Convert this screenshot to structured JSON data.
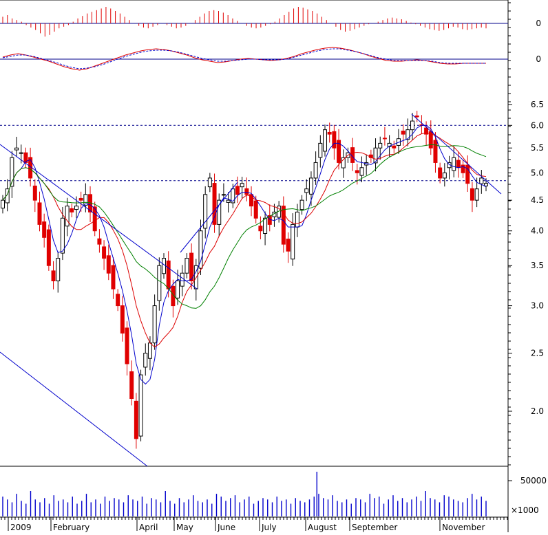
{
  "chart_data": {
    "type": "candlestick",
    "price_axis": {
      "scale": "log",
      "ticks": [
        "6.5",
        "6.0",
        "5.5",
        "5.0",
        "4.5",
        "4.0",
        "3.5",
        "3.0",
        "2.5",
        "2.0"
      ],
      "horizontal_levels": [
        6.0,
        4.85
      ]
    },
    "x_axis": {
      "labels": [
        "2009",
        "February",
        "April",
        "May",
        "June",
        "July",
        "August",
        "September",
        "November"
      ]
    },
    "moving_averages": [
      "blue",
      "red",
      "green"
    ],
    "candles_close_approx": [
      4.5,
      4.7,
      5.3,
      5.5,
      5.4,
      5.2,
      4.9,
      4.5,
      4.1,
      3.9,
      3.5,
      3.3,
      3.6,
      4.2,
      4.4,
      4.3,
      4.4,
      4.5,
      4.6,
      4.3,
      4.0,
      3.8,
      3.6,
      3.4,
      3.2,
      3.0,
      2.7,
      2.4,
      2.1,
      1.8,
      2.3,
      2.5,
      2.6,
      3.0,
      3.5,
      3.6,
      3.2,
      3.0,
      3.3,
      3.4,
      3.6,
      3.3,
      3.5,
      4.0,
      4.6,
      4.9,
      4.1,
      4.5,
      4.6,
      4.5,
      4.7,
      4.6,
      4.8,
      4.6,
      4.4,
      4.2,
      4.0,
      4.2,
      4.1,
      4.3,
      4.4,
      3.8,
      3.7,
      4.1,
      4.3,
      4.5,
      4.7,
      4.9,
      5.2,
      5.6,
      5.9,
      5.8,
      5.5,
      5.2,
      5.3,
      5.4,
      5.2,
      5.0,
      5.1,
      5.2,
      5.3,
      5.5,
      5.6,
      5.7,
      5.6,
      5.5,
      5.7,
      5.8,
      5.9,
      6.1,
      6.2,
      6.0,
      5.8,
      5.5,
      5.2,
      4.9,
      5.0,
      5.2,
      5.3,
      5.1,
      5.0,
      4.8,
      4.5,
      4.7,
      4.9,
      4.8
    ],
    "volume_axis": {
      "label": "50000",
      "unit": "×1000"
    },
    "volume_ref": 50000,
    "volume_bars_approx": [
      14,
      12,
      10,
      16,
      11,
      9,
      18,
      12,
      10,
      13,
      9,
      15,
      11,
      12,
      10,
      14,
      9,
      11,
      16,
      10,
      12,
      9,
      14,
      11,
      13,
      12,
      10,
      15,
      12,
      11,
      14,
      9,
      13,
      12,
      10,
      18,
      11,
      9,
      13,
      10,
      12,
      15,
      11,
      10,
      12,
      9,
      16,
      14,
      11,
      13,
      15,
      10,
      12,
      14,
      9,
      11,
      13,
      12,
      10,
      14,
      11,
      12,
      9,
      13,
      11,
      10,
      12,
      14,
      16,
      13,
      12,
      15,
      11,
      10,
      12,
      9,
      13,
      12,
      10,
      16,
      13,
      14,
      9,
      12,
      15,
      11,
      13,
      10,
      12,
      14,
      11,
      18,
      13,
      12,
      10,
      15,
      14,
      12,
      11,
      10,
      13,
      16,
      12,
      14,
      11
    ],
    "volume_peak": 80,
    "macd_histogram_approx": [
      8,
      10,
      6,
      4,
      2,
      -2,
      -5,
      -8,
      -12,
      -16,
      -14,
      -10,
      -6,
      -4,
      -2,
      2,
      6,
      9,
      12,
      14,
      16,
      18,
      20,
      18,
      15,
      12,
      8,
      4,
      0,
      -3,
      -5,
      -6,
      -4,
      -2,
      0,
      -2,
      -4,
      -6,
      -5,
      -3,
      0,
      4,
      8,
      12,
      15,
      16,
      15,
      13,
      10,
      6,
      3,
      0,
      -3,
      -5,
      -6,
      -5,
      -3,
      -1,
      2,
      6,
      10,
      14,
      18,
      20,
      19,
      17,
      15,
      12,
      8,
      4,
      0,
      -4,
      -8,
      -10,
      -9,
      -7,
      -5,
      -3,
      -1,
      0,
      2,
      4,
      6,
      7,
      6,
      5,
      3,
      1,
      -1,
      -3,
      -5,
      -7,
      -8,
      -9,
      -8,
      -6,
      -4,
      -5,
      -7,
      -8,
      -7,
      -6,
      -5,
      -6
    ],
    "macd_axis": "0",
    "macd_lines_approx": {
      "macd": [
        3,
        6,
        8,
        6,
        3,
        0,
        -3,
        -7,
        -11,
        -14,
        -16,
        -14,
        -10,
        -6,
        -2,
        2,
        6,
        9,
        12,
        14,
        15,
        14,
        12,
        9,
        6,
        2,
        -1,
        -3,
        -5,
        -4,
        -2,
        0,
        1,
        0,
        -1,
        -2,
        -1,
        1,
        4,
        8,
        11,
        14,
        16,
        17,
        16,
        14,
        11,
        8,
        4,
        1,
        -2,
        -3,
        -3,
        -2,
        -1,
        -2,
        -4,
        -6,
        -7,
        -7,
        -6,
        -6,
        -6,
        -6
      ],
      "signal": [
        2,
        4,
        6,
        6,
        4,
        1,
        -2,
        -5,
        -9,
        -12,
        -14,
        -13,
        -11,
        -8,
        -4,
        0,
        4,
        7,
        10,
        12,
        13,
        13,
        12,
        10,
        7,
        4,
        1,
        -1,
        -3,
        -3,
        -2,
        -1,
        0,
        0,
        -1,
        -1,
        -1,
        0,
        3,
        6,
        9,
        12,
        14,
        15,
        15,
        13,
        11,
        8,
        5,
        2,
        0,
        -2,
        -2,
        -2,
        -2,
        -2,
        -3,
        -5,
        -6,
        -6,
        -6,
        -6,
        -6,
        -6
      ]
    },
    "macd_lines_axis": "0"
  }
}
